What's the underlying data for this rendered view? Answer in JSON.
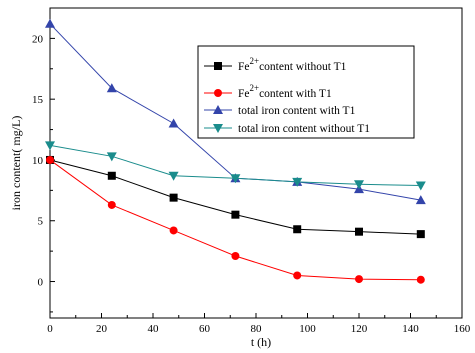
{
  "chart_data": {
    "type": "line",
    "xlabel": "t (h)",
    "ylabel": "iron content(  mg/L)",
    "xlim": [
      0,
      160
    ],
    "ylim": [
      -3,
      22.5
    ],
    "xticks": [
      0,
      20,
      40,
      60,
      80,
      100,
      120,
      140,
      160
    ],
    "yticks": [
      0,
      5,
      10,
      15,
      20
    ],
    "x": [
      0,
      24,
      48,
      72,
      96,
      120,
      144
    ],
    "grid": false,
    "legend_position": "top-right",
    "series": [
      {
        "name_main": "Fe",
        "name_sup": "2+",
        "name_rest": "content without T1",
        "marker": "square",
        "color": "#000000",
        "values": [
          10.0,
          8.7,
          6.9,
          5.5,
          4.3,
          4.1,
          3.9
        ]
      },
      {
        "name_main": "Fe",
        "name_sup": "2+",
        "name_rest": "content with T1",
        "marker": "circle",
        "color": "#ff0000",
        "values": [
          10.0,
          6.3,
          4.2,
          2.1,
          0.5,
          0.2,
          0.15
        ]
      },
      {
        "name_main": "total iron content with T1",
        "marker": "triangle-up",
        "color": "#3344aa",
        "values": [
          21.2,
          15.9,
          13.0,
          8.5,
          8.2,
          7.6,
          6.7
        ]
      },
      {
        "name_main": "total iron content without T1",
        "marker": "triangle-down",
        "color": "#1a8c8c",
        "values": [
          11.2,
          10.3,
          8.7,
          8.5,
          8.2,
          8.0,
          7.9
        ]
      }
    ]
  }
}
